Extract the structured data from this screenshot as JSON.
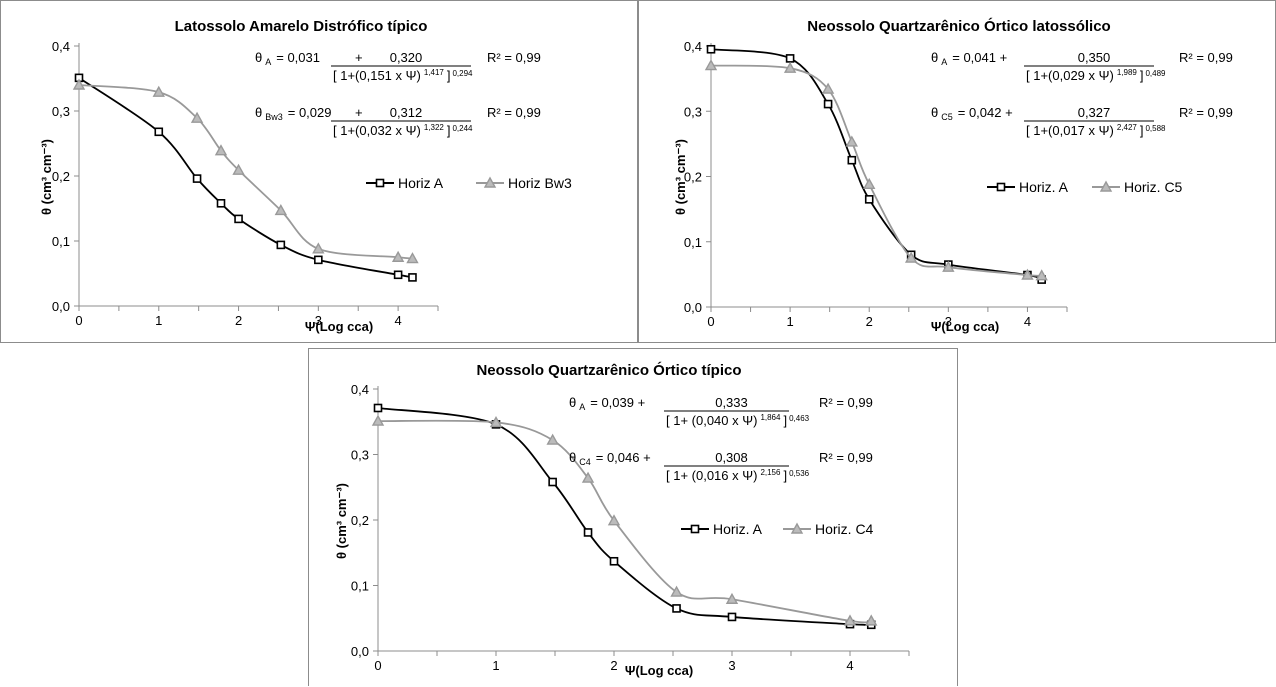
{
  "colors": {
    "horizA": "#000000",
    "horizB": "#999999",
    "axis": "#8c8c8c"
  },
  "chart_data": [
    {
      "type": "line",
      "title": "Latossolo Amarelo Distrófico típico",
      "ylabel": "θ (cm³ cm⁻³)",
      "xlabel": "Ψ(Log cca)",
      "x_ticks": [
        "0",
        "1",
        "2",
        "3",
        "4"
      ],
      "y_ticks": [
        "0,0",
        "0,1",
        "0,2",
        "0,3",
        "0,4"
      ],
      "xlim": [
        0,
        4.5
      ],
      "ylim": [
        0,
        0.4
      ],
      "legend_position": "right-center",
      "series": [
        {
          "name": "Horiz A",
          "marker": "square",
          "color": "#000000",
          "x": [
            0,
            1,
            1.48,
            1.78,
            2,
            2.53,
            3,
            4,
            4.18
          ],
          "y": [
            0.351,
            0.268,
            0.196,
            0.158,
            0.134,
            0.094,
            0.071,
            0.048,
            0.044
          ]
        },
        {
          "name": "Horiz Bw3",
          "marker": "triangle",
          "color": "#999999",
          "x": [
            0,
            1,
            1.48,
            1.78,
            2,
            2.53,
            3,
            4,
            4.18
          ],
          "y": [
            0.34,
            0.329,
            0.289,
            0.239,
            0.209,
            0.147,
            0.088,
            0.075,
            0.073
          ]
        }
      ],
      "equations": [
        {
          "lhs": "θ",
          "sub": "A",
          "a": "= 0,031",
          "num": "0,320",
          "den": "[ 1+(0,151 x  Ψ)",
          "n": "1,417",
          "m": "0,294",
          "r2": "R² = 0,99"
        },
        {
          "lhs": "θ",
          "sub": "Bw3",
          "a": "= 0,029",
          "num": "0,312",
          "den": "[ 1+(0,032 x  Ψ)",
          "n": "1,322",
          "m": "0,244",
          "r2": "R² = 0,99"
        }
      ]
    },
    {
      "type": "line",
      "title": "Neossolo Quartzarênico Órtico latossólico",
      "ylabel": "θ (cm³ cm⁻³)",
      "xlabel": "Ψ(Log cca)",
      "x_ticks": [
        "0",
        "1",
        "2",
        "3",
        "4"
      ],
      "y_ticks": [
        "0,0",
        "0,1",
        "0,2",
        "0,3",
        "0,4"
      ],
      "xlim": [
        0,
        4.5
      ],
      "ylim": [
        0,
        0.4
      ],
      "legend_position": "right-center",
      "series": [
        {
          "name": "Horiz. A",
          "marker": "square",
          "color": "#000000",
          "x": [
            0,
            1,
            1.48,
            1.78,
            2,
            2.53,
            3,
            4,
            4.18
          ],
          "y": [
            0.395,
            0.381,
            0.311,
            0.225,
            0.165,
            0.08,
            0.065,
            0.049,
            0.042
          ]
        },
        {
          "name": "Horiz. C5",
          "marker": "triangle",
          "color": "#999999",
          "x": [
            0,
            1,
            1.48,
            1.78,
            2,
            2.53,
            3,
            4,
            4.18
          ],
          "y": [
            0.37,
            0.366,
            0.334,
            0.253,
            0.188,
            0.075,
            0.061,
            0.049,
            0.048
          ]
        }
      ],
      "equations": [
        {
          "lhs": "θ",
          "sub": "A",
          "a": "= 0,041 +",
          "num": "0,350",
          "den": "[ 1+(0,029  x  Ψ)",
          "n": "1,989",
          "m": "0,489",
          "r2": "R² = 0,99"
        },
        {
          "lhs": "θ",
          "sub": "C5",
          "a": "= 0,042 +",
          "num": "0,327",
          "den": "[ 1+(0,017  x  Ψ)",
          "n": "2,427",
          "m": "0,588",
          "r2": "R² = 0,99"
        }
      ]
    },
    {
      "type": "line",
      "title": "Neossolo Quartzarênico  Órtico típico",
      "ylabel": "θ (cm³ cm⁻³)",
      "xlabel": "Ψ(Log cca)",
      "x_ticks": [
        "0",
        "1",
        "2",
        "3",
        "4"
      ],
      "y_ticks": [
        "0,0",
        "0,1",
        "0,2",
        "0,3",
        "0,4"
      ],
      "xlim": [
        0,
        4.5
      ],
      "ylim": [
        0,
        0.4
      ],
      "legend_position": "right-center",
      "series": [
        {
          "name": "Horiz. A",
          "marker": "square",
          "color": "#000000",
          "x": [
            0,
            1,
            1.48,
            1.78,
            2,
            2.53,
            3,
            4,
            4.18
          ],
          "y": [
            0.371,
            0.346,
            0.258,
            0.181,
            0.137,
            0.065,
            0.052,
            0.041,
            0.04
          ]
        },
        {
          "name": "Horiz. C4",
          "marker": "triangle",
          "color": "#999999",
          "x": [
            0,
            1,
            1.48,
            1.78,
            2,
            2.53,
            3,
            4,
            4.18
          ],
          "y": [
            0.351,
            0.349,
            0.322,
            0.264,
            0.199,
            0.09,
            0.079,
            0.046,
            0.046
          ]
        }
      ],
      "equations": [
        {
          "lhs": "θ",
          "sub": "A",
          "a": "= 0,039  +",
          "num": "0,333",
          "den": "[ 1+ (0,040 x  Ψ)",
          "n": "1,864",
          "m": "0,463",
          "r2": "R² = 0,99"
        },
        {
          "lhs": "θ",
          "sub": "C4",
          "a": "= 0,046 +",
          "num": "0,308",
          "den": "[ 1+ (0,016 x  Ψ)",
          "n": "2,156",
          "m": "0,536",
          "r2": "R² = 0,99"
        }
      ]
    }
  ]
}
